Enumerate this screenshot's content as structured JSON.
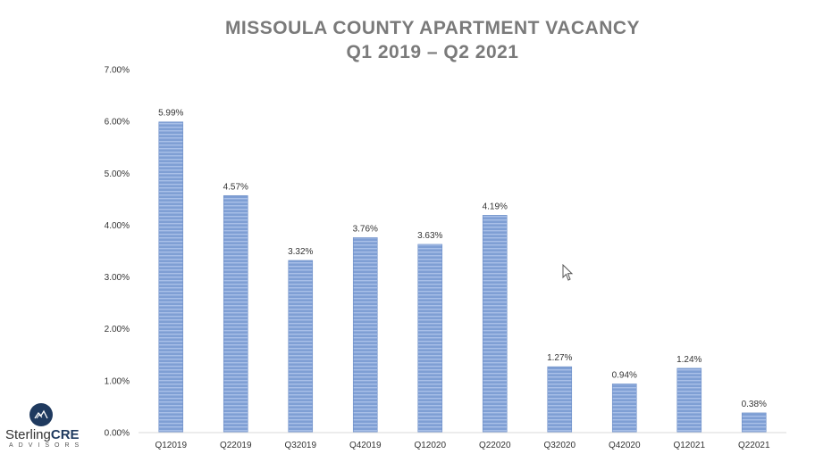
{
  "chart_data": {
    "type": "bar",
    "title": "MISSOULA COUNTY APARTMENT VACANCY",
    "subtitle": "Q1 2019 – Q2 2021",
    "categories": [
      "Q12019",
      "Q22019",
      "Q32019",
      "Q42019",
      "Q12020",
      "Q22020",
      "Q32020",
      "Q42020",
      "Q12021",
      "Q22021"
    ],
    "values": [
      5.99,
      4.57,
      3.32,
      3.76,
      3.63,
      4.19,
      1.27,
      0.94,
      1.24,
      0.38
    ],
    "value_labels": [
      "5.99%",
      "4.57%",
      "3.32%",
      "3.76%",
      "3.63%",
      "4.19%",
      "1.27%",
      "0.94%",
      "1.24%",
      "0.38%"
    ],
    "y_ticks": [
      "0.00%",
      "1.00%",
      "2.00%",
      "3.00%",
      "4.00%",
      "5.00%",
      "6.00%",
      "7.00%"
    ],
    "ylim": [
      0,
      7
    ],
    "grid": false,
    "bar_color": "#7f9fd4"
  },
  "logo": {
    "brand_main": "Sterling",
    "brand_accent": "CRE",
    "sub": "ADVISORS"
  }
}
